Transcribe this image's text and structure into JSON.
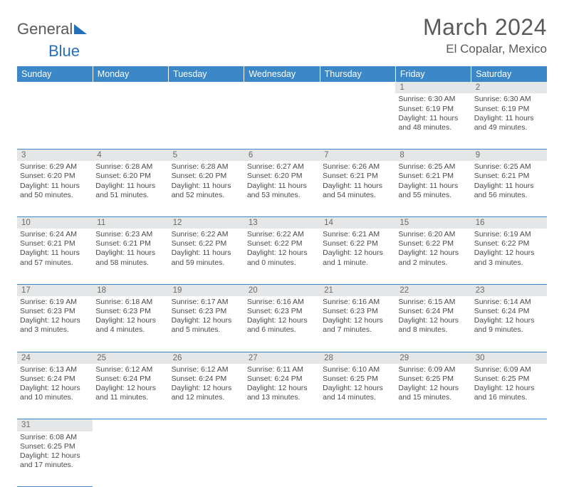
{
  "logo": {
    "text_dark": "General",
    "text_blue": "Blue"
  },
  "title": "March 2024",
  "location": "El Copalar, Mexico",
  "colors": {
    "header_bg": "#3b87c8",
    "header_fg": "#ffffff",
    "daynum_bg": "#e5e6e7",
    "text": "#4a4a4a",
    "border": "#3b87c8"
  },
  "typography": {
    "title_fontsize": 32,
    "location_fontsize": 17,
    "th_fontsize": 12.5,
    "cell_fontsize": 10.5,
    "logo_fontsize": 22
  },
  "headers": [
    "Sunday",
    "Monday",
    "Tuesday",
    "Wednesday",
    "Thursday",
    "Friday",
    "Saturday"
  ],
  "weeks": [
    [
      null,
      null,
      null,
      null,
      null,
      {
        "n": "1",
        "sr": "Sunrise: 6:30 AM",
        "ss": "Sunset: 6:19 PM",
        "d1": "Daylight: 11 hours",
        "d2": "and 48 minutes."
      },
      {
        "n": "2",
        "sr": "Sunrise: 6:30 AM",
        "ss": "Sunset: 6:19 PM",
        "d1": "Daylight: 11 hours",
        "d2": "and 49 minutes."
      }
    ],
    [
      {
        "n": "3",
        "sr": "Sunrise: 6:29 AM",
        "ss": "Sunset: 6:20 PM",
        "d1": "Daylight: 11 hours",
        "d2": "and 50 minutes."
      },
      {
        "n": "4",
        "sr": "Sunrise: 6:28 AM",
        "ss": "Sunset: 6:20 PM",
        "d1": "Daylight: 11 hours",
        "d2": "and 51 minutes."
      },
      {
        "n": "5",
        "sr": "Sunrise: 6:28 AM",
        "ss": "Sunset: 6:20 PM",
        "d1": "Daylight: 11 hours",
        "d2": "and 52 minutes."
      },
      {
        "n": "6",
        "sr": "Sunrise: 6:27 AM",
        "ss": "Sunset: 6:20 PM",
        "d1": "Daylight: 11 hours",
        "d2": "and 53 minutes."
      },
      {
        "n": "7",
        "sr": "Sunrise: 6:26 AM",
        "ss": "Sunset: 6:21 PM",
        "d1": "Daylight: 11 hours",
        "d2": "and 54 minutes."
      },
      {
        "n": "8",
        "sr": "Sunrise: 6:25 AM",
        "ss": "Sunset: 6:21 PM",
        "d1": "Daylight: 11 hours",
        "d2": "and 55 minutes."
      },
      {
        "n": "9",
        "sr": "Sunrise: 6:25 AM",
        "ss": "Sunset: 6:21 PM",
        "d1": "Daylight: 11 hours",
        "d2": "and 56 minutes."
      }
    ],
    [
      {
        "n": "10",
        "sr": "Sunrise: 6:24 AM",
        "ss": "Sunset: 6:21 PM",
        "d1": "Daylight: 11 hours",
        "d2": "and 57 minutes."
      },
      {
        "n": "11",
        "sr": "Sunrise: 6:23 AM",
        "ss": "Sunset: 6:21 PM",
        "d1": "Daylight: 11 hours",
        "d2": "and 58 minutes."
      },
      {
        "n": "12",
        "sr": "Sunrise: 6:22 AM",
        "ss": "Sunset: 6:22 PM",
        "d1": "Daylight: 11 hours",
        "d2": "and 59 minutes."
      },
      {
        "n": "13",
        "sr": "Sunrise: 6:22 AM",
        "ss": "Sunset: 6:22 PM",
        "d1": "Daylight: 12 hours",
        "d2": "and 0 minutes."
      },
      {
        "n": "14",
        "sr": "Sunrise: 6:21 AM",
        "ss": "Sunset: 6:22 PM",
        "d1": "Daylight: 12 hours",
        "d2": "and 1 minute."
      },
      {
        "n": "15",
        "sr": "Sunrise: 6:20 AM",
        "ss": "Sunset: 6:22 PM",
        "d1": "Daylight: 12 hours",
        "d2": "and 2 minutes."
      },
      {
        "n": "16",
        "sr": "Sunrise: 6:19 AM",
        "ss": "Sunset: 6:22 PM",
        "d1": "Daylight: 12 hours",
        "d2": "and 3 minutes."
      }
    ],
    [
      {
        "n": "17",
        "sr": "Sunrise: 6:19 AM",
        "ss": "Sunset: 6:23 PM",
        "d1": "Daylight: 12 hours",
        "d2": "and 3 minutes."
      },
      {
        "n": "18",
        "sr": "Sunrise: 6:18 AM",
        "ss": "Sunset: 6:23 PM",
        "d1": "Daylight: 12 hours",
        "d2": "and 4 minutes."
      },
      {
        "n": "19",
        "sr": "Sunrise: 6:17 AM",
        "ss": "Sunset: 6:23 PM",
        "d1": "Daylight: 12 hours",
        "d2": "and 5 minutes."
      },
      {
        "n": "20",
        "sr": "Sunrise: 6:16 AM",
        "ss": "Sunset: 6:23 PM",
        "d1": "Daylight: 12 hours",
        "d2": "and 6 minutes."
      },
      {
        "n": "21",
        "sr": "Sunrise: 6:16 AM",
        "ss": "Sunset: 6:23 PM",
        "d1": "Daylight: 12 hours",
        "d2": "and 7 minutes."
      },
      {
        "n": "22",
        "sr": "Sunrise: 6:15 AM",
        "ss": "Sunset: 6:24 PM",
        "d1": "Daylight: 12 hours",
        "d2": "and 8 minutes."
      },
      {
        "n": "23",
        "sr": "Sunrise: 6:14 AM",
        "ss": "Sunset: 6:24 PM",
        "d1": "Daylight: 12 hours",
        "d2": "and 9 minutes."
      }
    ],
    [
      {
        "n": "24",
        "sr": "Sunrise: 6:13 AM",
        "ss": "Sunset: 6:24 PM",
        "d1": "Daylight: 12 hours",
        "d2": "and 10 minutes."
      },
      {
        "n": "25",
        "sr": "Sunrise: 6:12 AM",
        "ss": "Sunset: 6:24 PM",
        "d1": "Daylight: 12 hours",
        "d2": "and 11 minutes."
      },
      {
        "n": "26",
        "sr": "Sunrise: 6:12 AM",
        "ss": "Sunset: 6:24 PM",
        "d1": "Daylight: 12 hours",
        "d2": "and 12 minutes."
      },
      {
        "n": "27",
        "sr": "Sunrise: 6:11 AM",
        "ss": "Sunset: 6:24 PM",
        "d1": "Daylight: 12 hours",
        "d2": "and 13 minutes."
      },
      {
        "n": "28",
        "sr": "Sunrise: 6:10 AM",
        "ss": "Sunset: 6:25 PM",
        "d1": "Daylight: 12 hours",
        "d2": "and 14 minutes."
      },
      {
        "n": "29",
        "sr": "Sunrise: 6:09 AM",
        "ss": "Sunset: 6:25 PM",
        "d1": "Daylight: 12 hours",
        "d2": "and 15 minutes."
      },
      {
        "n": "30",
        "sr": "Sunrise: 6:09 AM",
        "ss": "Sunset: 6:25 PM",
        "d1": "Daylight: 12 hours",
        "d2": "and 16 minutes."
      }
    ],
    [
      {
        "n": "31",
        "sr": "Sunrise: 6:08 AM",
        "ss": "Sunset: 6:25 PM",
        "d1": "Daylight: 12 hours",
        "d2": "and 17 minutes."
      },
      null,
      null,
      null,
      null,
      null,
      null
    ]
  ]
}
